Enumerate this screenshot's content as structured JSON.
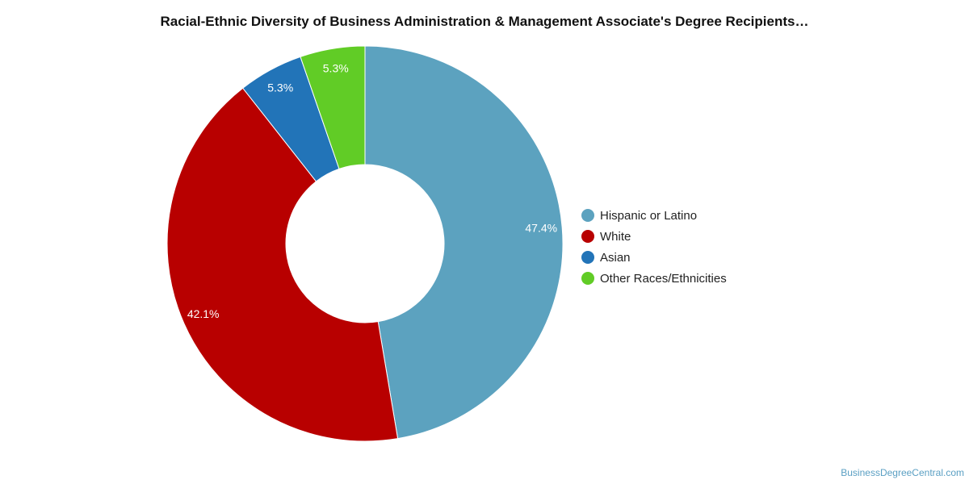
{
  "chart_data": {
    "type": "pie",
    "title": "Racial-Ethnic Diversity of Business Administration & Management Associate's Degree Recipients…",
    "donut": true,
    "legend_position": "right",
    "slices": [
      {
        "name": "Hispanic or Latino",
        "value": 47.4,
        "label": "47.4%",
        "color": "#5ca2bf"
      },
      {
        "name": "White",
        "value": 42.1,
        "label": "42.1%",
        "color": "#b80000"
      },
      {
        "name": "Asian",
        "value": 5.3,
        "label": "5.3%",
        "color": "#2274b8"
      },
      {
        "name": "Other Races/Ethnicities",
        "value": 5.3,
        "label": "5.3%",
        "color": "#61cc26"
      }
    ]
  },
  "watermark": "BusinessDegreeCentral.com"
}
